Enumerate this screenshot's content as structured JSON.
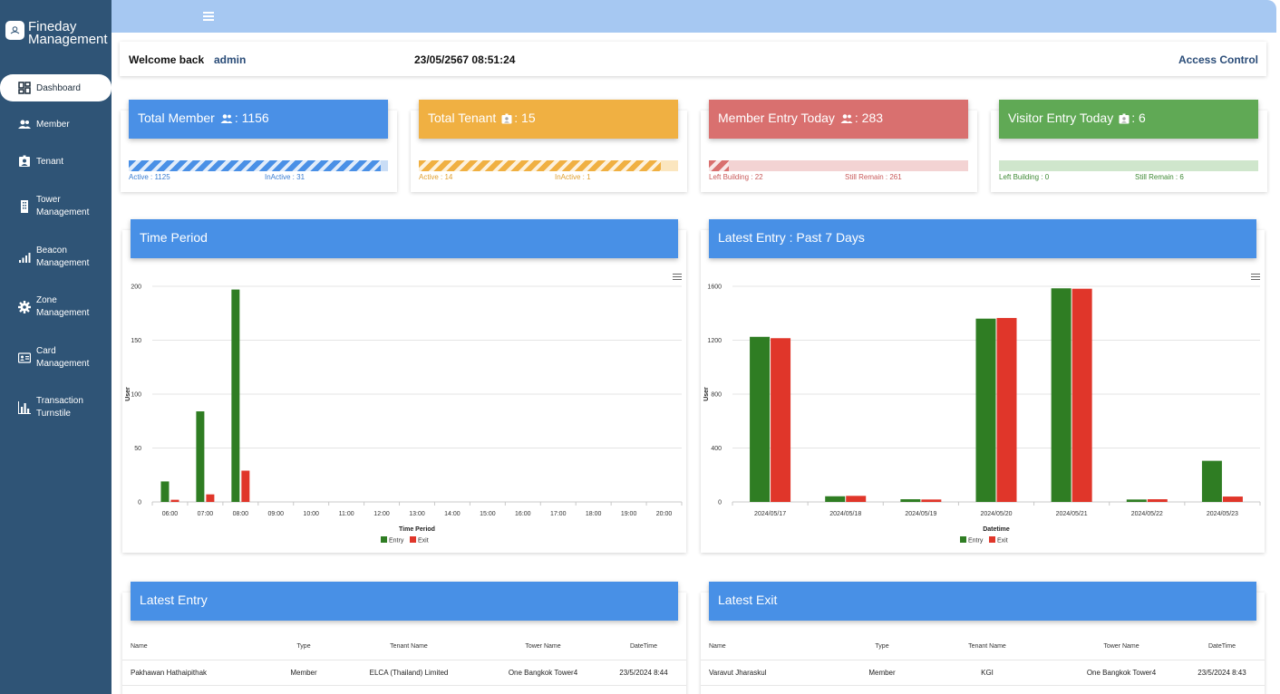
{
  "brand": {
    "line1": "Fineday",
    "line2": "Management"
  },
  "nav": [
    {
      "label": "Dashboard",
      "icon": "dashboard-icon"
    },
    {
      "label": "Member",
      "icon": "members-icon"
    },
    {
      "label": "Tenant",
      "icon": "tenant-badge-icon"
    },
    {
      "label1": "Tower",
      "label2": "Management",
      "icon": "building-icon"
    },
    {
      "label1": "Beacon",
      "label2": "Management",
      "icon": "signal-icon"
    },
    {
      "label1": "Zone",
      "label2": "Management",
      "icon": "gear-icon"
    },
    {
      "label1": "Card",
      "label2": "Management",
      "icon": "id-card-icon"
    },
    {
      "label1": "Transaction",
      "label2": "Turnstile",
      "icon": "bar-chart-icon"
    }
  ],
  "header": {
    "welcome": "Welcome back",
    "user": "admin",
    "datetime": "23/05/2567 08:51:24",
    "access_control": "Access Control"
  },
  "stats": [
    {
      "title": "Total Member",
      "value": ": 1156",
      "color": "#4a90e6",
      "track": "#c9ddf6",
      "label_color": "#3a7dd1",
      "left_label": "Active : 1125",
      "right_label": "InActive : 31",
      "ratio": 0.973
    },
    {
      "title": "Total Tenant",
      "value": ": 15",
      "color": "#f0b042",
      "track": "#fbe6bf",
      "label_color": "#e0a030",
      "left_label": "Active : 14",
      "right_label": "InActive : 1",
      "ratio": 0.933
    },
    {
      "title": "Member Entry Today",
      "value": ": 283",
      "color": "#d9706f",
      "track": "#f3d3d3",
      "label_color": "#c85a5a",
      "left_label": "Left Building : 22",
      "right_label": "Still Remain : 261",
      "ratio": 0.078
    },
    {
      "title": "Visitor Entry Today",
      "value": ": 6",
      "color": "#60a955",
      "track": "#cfe6cc",
      "label_color": "#3f8a35",
      "left_label": "Left Building : 0",
      "right_label": "Still Remain : 6",
      "ratio": 0.0
    }
  ],
  "panels": {
    "time_period": "Time Period",
    "latest_entry_7": "Latest Entry : Past 7 Days",
    "latest_entry": "Latest Entry",
    "latest_exit": "Latest Exit"
  },
  "chart_data": [
    {
      "type": "bar",
      "title": "Time Period",
      "xlabel": "Time Period",
      "ylabel": "User",
      "ylim": [
        0,
        200
      ],
      "yticks": [
        "0",
        "50",
        "100",
        "150",
        "200"
      ],
      "categories": [
        "06:00",
        "07:00",
        "08:00",
        "09:00",
        "10:00",
        "11:00",
        "12:00",
        "13:00",
        "14:00",
        "15:00",
        "16:00",
        "17:00",
        "18:00",
        "19:00",
        "20:00"
      ],
      "series": [
        {
          "name": "Entry",
          "color": "#2f7d23",
          "values": [
            19,
            84,
            197,
            0,
            0,
            0,
            0,
            0,
            0,
            0,
            0,
            0,
            0,
            0,
            0
          ]
        },
        {
          "name": "Exit",
          "color": "#e0362a",
          "values": [
            2,
            7,
            29,
            0,
            0,
            0,
            0,
            0,
            0,
            0,
            0,
            0,
            0,
            0,
            0
          ]
        }
      ]
    },
    {
      "type": "bar",
      "title": "Latest Entry : Past 7 Days",
      "xlabel": "Datetime",
      "ylabel": "User",
      "ylim": [
        0,
        1600
      ],
      "yticks": [
        "0",
        "400",
        "800",
        "1200",
        "1600"
      ],
      "categories": [
        "2024/05/17",
        "2024/05/18",
        "2024/05/19",
        "2024/05/20",
        "2024/05/21",
        "2024/05/22",
        "2024/05/23"
      ],
      "series": [
        {
          "name": "Entry",
          "color": "#2f7d23",
          "values": [
            1225,
            42,
            20,
            1360,
            1585,
            18,
            305
          ]
        },
        {
          "name": "Exit",
          "color": "#e0362a",
          "values": [
            1215,
            45,
            18,
            1365,
            1582,
            20,
            40
          ]
        }
      ]
    }
  ],
  "entry_table": {
    "headers": [
      "Name",
      "Type",
      "Tenant Name",
      "Tower Name",
      "DateTime"
    ],
    "rows": [
      [
        "Pakhawan Hathaipithak",
        "Member",
        "ELCA (Thailand) Limited",
        "One Bangkok Tower4",
        "23/5/2024 8:44"
      ]
    ]
  },
  "exit_table": {
    "headers": [
      "Name",
      "Type",
      "Tenant Name",
      "Tower Name",
      "DateTime"
    ],
    "rows": [
      [
        "Varavut Jharaskul",
        "Member",
        "KGI",
        "One Bangkok Tower4",
        "23/5/2024 8:43"
      ]
    ]
  }
}
